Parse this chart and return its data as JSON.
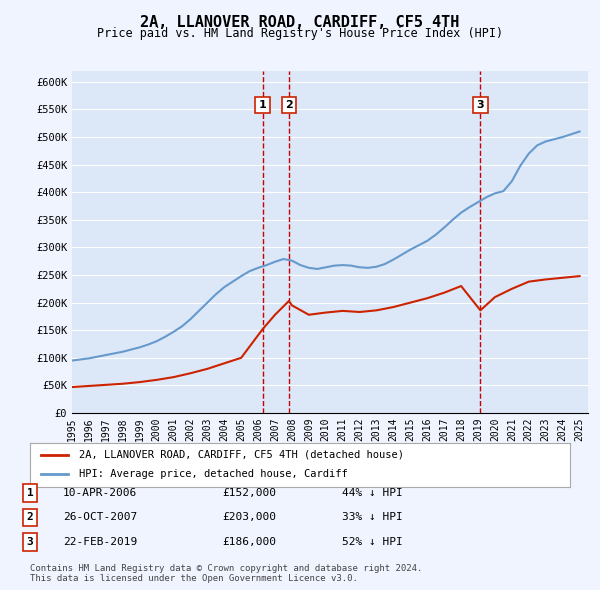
{
  "title": "2A, LLANOVER ROAD, CARDIFF, CF5 4TH",
  "subtitle": "Price paid vs. HM Land Registry's House Price Index (HPI)",
  "ylabel": "",
  "background_color": "#f0f4ff",
  "plot_background": "#dce8f8",
  "hpi_color": "#6699cc",
  "price_color": "#cc2200",
  "vline_color": "#cc0000",
  "transactions": [
    {
      "num": 1,
      "date_label": "10-APR-2006",
      "price": 152000,
      "pct": "44%",
      "x_val": 2006.27
    },
    {
      "num": 2,
      "date_label": "26-OCT-2007",
      "price": 203000,
      "pct": "33%",
      "x_val": 2007.82
    },
    {
      "num": 3,
      "date_label": "22-FEB-2019",
      "price": 186000,
      "pct": "52%",
      "x_val": 2019.14
    }
  ],
  "hpi_x": [
    1995,
    1995.5,
    1996,
    1996.5,
    1997,
    1997.5,
    1998,
    1998.5,
    1999,
    1999.5,
    2000,
    2000.5,
    2001,
    2001.5,
    2002,
    2002.5,
    2003,
    2003.5,
    2004,
    2004.5,
    2005,
    2005.5,
    2006,
    2006.5,
    2007,
    2007.5,
    2008,
    2008.5,
    2009,
    2009.5,
    2010,
    2010.5,
    2011,
    2011.5,
    2012,
    2012.5,
    2013,
    2013.5,
    2014,
    2014.5,
    2015,
    2015.5,
    2016,
    2016.5,
    2017,
    2017.5,
    2018,
    2018.5,
    2019,
    2019.5,
    2020,
    2020.5,
    2021,
    2021.5,
    2022,
    2022.5,
    2023,
    2023.5,
    2024,
    2024.5,
    2025
  ],
  "hpi_y": [
    95000,
    97000,
    99000,
    102000,
    105000,
    108000,
    111000,
    115000,
    119000,
    124000,
    130000,
    138000,
    147000,
    157000,
    170000,
    185000,
    200000,
    215000,
    228000,
    238000,
    248000,
    257000,
    263000,
    268000,
    274000,
    279000,
    276000,
    268000,
    263000,
    261000,
    264000,
    267000,
    268000,
    267000,
    264000,
    263000,
    265000,
    270000,
    278000,
    287000,
    296000,
    304000,
    312000,
    323000,
    336000,
    350000,
    363000,
    373000,
    382000,
    391000,
    398000,
    402000,
    420000,
    448000,
    470000,
    485000,
    492000,
    496000,
    500000,
    505000,
    510000
  ],
  "price_x": [
    1995,
    1996,
    1997,
    1998,
    1999,
    2000,
    2001,
    2002,
    2003,
    2004,
    2005,
    2006.27,
    2007,
    2007.82,
    2008,
    2009,
    2010,
    2011,
    2012,
    2013,
    2014,
    2015,
    2016,
    2017,
    2018,
    2019.14,
    2020,
    2021,
    2022,
    2023,
    2024,
    2025
  ],
  "price_y": [
    47000,
    49000,
    51000,
    53000,
    56000,
    60000,
    65000,
    72000,
    80000,
    90000,
    100000,
    152000,
    178000,
    203000,
    195000,
    178000,
    182000,
    185000,
    183000,
    186000,
    192000,
    200000,
    208000,
    218000,
    230000,
    186000,
    210000,
    225000,
    238000,
    242000,
    245000,
    248000
  ],
  "xlim": [
    1995,
    2025.5
  ],
  "ylim": [
    0,
    620000
  ],
  "yticks": [
    0,
    50000,
    100000,
    150000,
    200000,
    250000,
    300000,
    350000,
    400000,
    450000,
    500000,
    550000,
    600000
  ],
  "xticks": [
    1995,
    1996,
    1997,
    1998,
    1999,
    2000,
    2001,
    2002,
    2003,
    2004,
    2005,
    2006,
    2007,
    2008,
    2009,
    2010,
    2011,
    2012,
    2013,
    2014,
    2015,
    2016,
    2017,
    2018,
    2019,
    2020,
    2021,
    2022,
    2023,
    2024,
    2025
  ],
  "legend_label_red": "2A, LLANOVER ROAD, CARDIFF, CF5 4TH (detached house)",
  "legend_label_blue": "HPI: Average price, detached house, Cardiff",
  "footer": "Contains HM Land Registry data © Crown copyright and database right 2024.\nThis data is licensed under the Open Government Licence v3.0."
}
